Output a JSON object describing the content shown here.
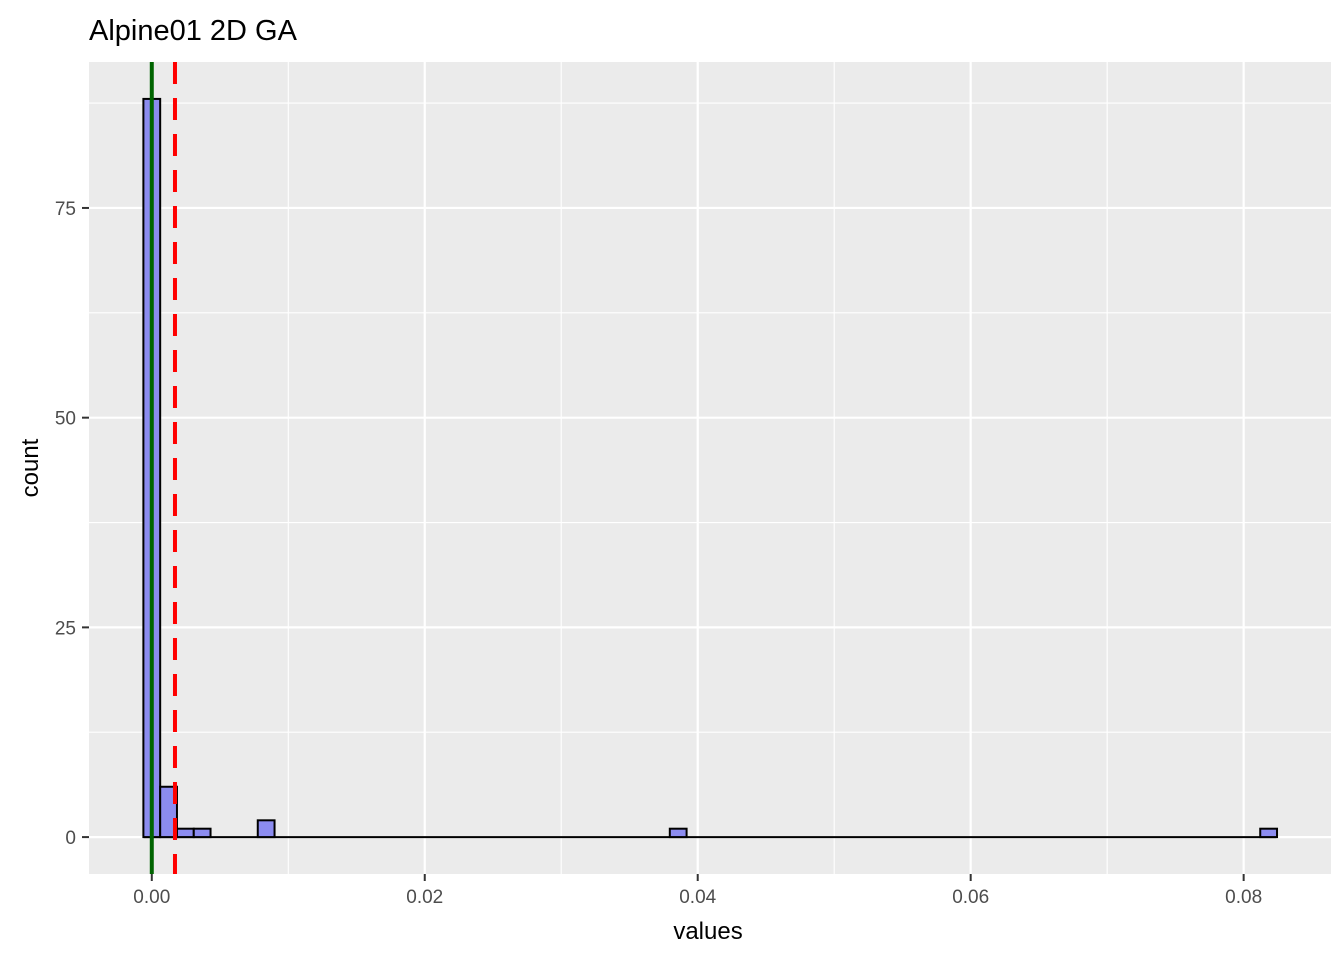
{
  "chart_data": {
    "type": "bar",
    "title": "Alpine01 2D GA",
    "xlabel": "values",
    "ylabel": "count",
    "xlim": [
      -0.0046,
      0.0864
    ],
    "ylim": [
      -4.4,
      92.4
    ],
    "x_ticks": [
      0.0,
      0.02,
      0.04,
      0.06,
      0.08
    ],
    "x_tick_labels": [
      "0.00",
      "0.02",
      "0.04",
      "0.06",
      "0.08"
    ],
    "y_ticks": [
      0,
      25,
      50,
      75
    ],
    "y_tick_labels": [
      "0",
      "25",
      "50",
      "75"
    ],
    "bin_width": 0.00123,
    "bins": [
      {
        "x": 0.0,
        "count": 88
      },
      {
        "x": 0.00123,
        "count": 6
      },
      {
        "x": 0.00246,
        "count": 1
      },
      {
        "x": 0.00369,
        "count": 1
      },
      {
        "x": 0.00838,
        "count": 2
      },
      {
        "x": 0.03857,
        "count": 1
      },
      {
        "x": 0.08183,
        "count": 1
      }
    ],
    "baseline": {
      "from": -0.0006,
      "to": 0.0824
    },
    "vlines": [
      {
        "x": 0.0,
        "color": "#006400",
        "style": "solid"
      },
      {
        "x": 0.0017,
        "color": "#ff0000",
        "style": "dashed"
      }
    ],
    "fill_color": "#8c8cf0",
    "panel_color": "#ebebeb",
    "grid": true
  }
}
